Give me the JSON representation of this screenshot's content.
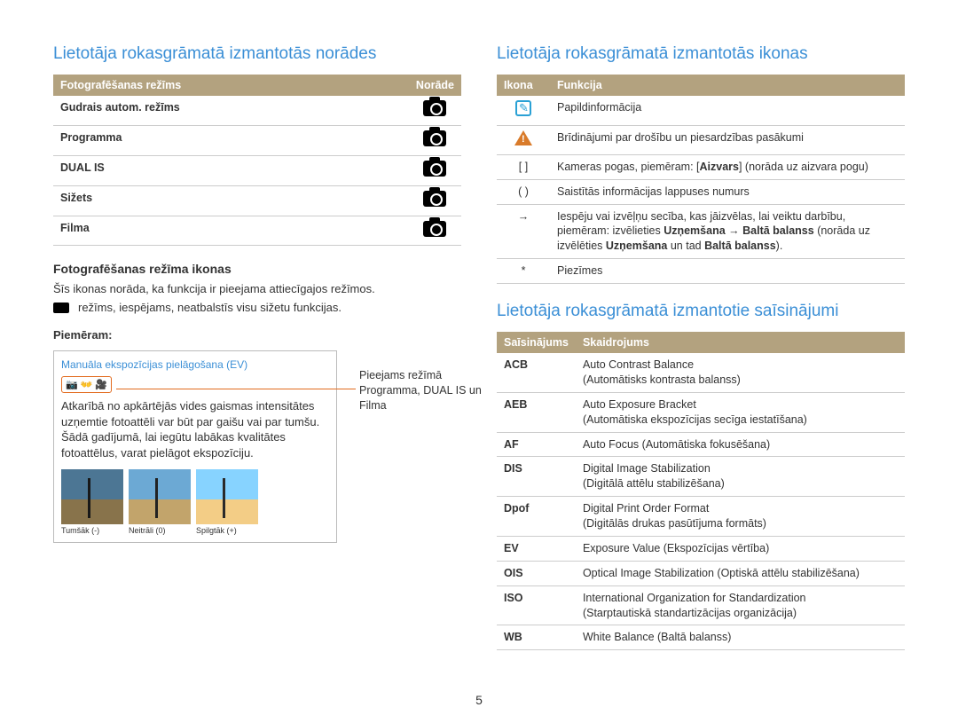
{
  "left": {
    "title": "Lietotāja rokasgrāmatā izmantotās norādes",
    "modes_table": {
      "headers": [
        "Fotografēšanas režīms",
        "Norāde"
      ],
      "rows": [
        {
          "label": "Gudrais autom. režīms"
        },
        {
          "label": "Programma"
        },
        {
          "label": "DUAL IS"
        },
        {
          "label": "Sižets"
        },
        {
          "label": "Filma"
        }
      ]
    },
    "icons_heading": "Fotografēšanas režīma ikonas",
    "icons_text1": "Šīs ikonas norāda, ka funkcija ir pieejama attiecīgajos režīmos.",
    "icons_text2": "režīms, iespējams, neatbalstīs visu sižetu funkcijas.",
    "example_label": "Piemēram:",
    "example": {
      "title": "Manuāla ekspozīcijas pielāgošana (EV)",
      "body": "Atkarībā no apkārtējās vides gaismas intensitātes uzņemtie fotoattēli var būt par gaišu vai par tumšu. Šādā gadījumā, lai iegūtu labākas kvalitātes fotoattēlus, varat pielāgot ekspozīciju.",
      "thumbs": [
        "Tumšāk (-)",
        "Neitrāli (0)",
        "Spilgtāk (+)"
      ],
      "callout": "Pieejams režīmā Programma, DUAL IS un Filma"
    }
  },
  "right": {
    "title_icons": "Lietotāja rokasgrāmatā izmantotās ikonas",
    "icons_table": {
      "headers": [
        "Ikona",
        "Funkcija"
      ],
      "rows": [
        {
          "icon": "note",
          "text": "Papildinformācija"
        },
        {
          "icon": "warn",
          "text": "Brīdinājumi par drošību un piesardzības pasākumi"
        },
        {
          "icon": "[ ]",
          "text_html": "Kameras pogas, piemēram: [<b>Aizvars</b>] (norāda uz aizvara pogu)"
        },
        {
          "icon": "( )",
          "text": "Saistītās informācijas lappuses numurs"
        },
        {
          "icon": "→",
          "text_html": "Iespēju vai izvēļņu secība, kas jāizvēlas, lai veiktu darbību, piemēram: izvēlieties <b>Uzņemšana</b> → <b>Baltā balanss</b> (norāda uz izvēlēties <b>Uzņemšana</b> un tad <b>Baltā balanss</b>)."
        },
        {
          "icon": "*",
          "text": "Piezīmes"
        }
      ]
    },
    "title_abbr": "Lietotāja rokasgrāmatā izmantotie saīsinājumi",
    "abbr_table": {
      "headers": [
        "Saīsinājums",
        "Skaidrojums"
      ],
      "rows": [
        {
          "abbr": "ACB",
          "desc": "Auto Contrast Balance\n(Automātisks kontrasta balanss)"
        },
        {
          "abbr": "AEB",
          "desc": "Auto Exposure Bracket\n(Automātiska ekspozīcijas secīga iestatīšana)"
        },
        {
          "abbr": "AF",
          "desc": "Auto Focus (Automātiska fokusēšana)"
        },
        {
          "abbr": "DIS",
          "desc": "Digital Image Stabilization\n(Digitālā attēlu stabilizēšana)"
        },
        {
          "abbr": "Dpof",
          "desc": "Digital Print Order Format\n(Digitālās drukas pasūtījuma formāts)"
        },
        {
          "abbr": "EV",
          "desc": "Exposure Value (Ekspozīcijas vērtība)"
        },
        {
          "abbr": "OIS",
          "desc": "Optical Image Stabilization (Optiskā attēlu stabilizēšana)"
        },
        {
          "abbr": "ISO",
          "desc": "International Organization for Standardization\n(Starptautiskā standartizācijas organizācija)"
        },
        {
          "abbr": "WB",
          "desc": "White Balance (Baltā balanss)"
        }
      ]
    }
  },
  "page_number": "5"
}
